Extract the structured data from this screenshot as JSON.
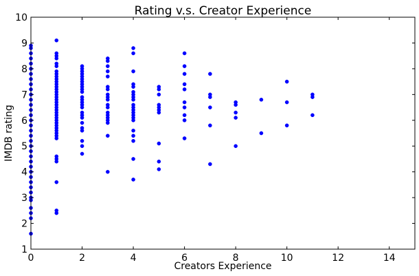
{
  "chart_data": {
    "type": "scatter",
    "title": "Rating v.s. Creator Experience",
    "xlabel": "Creators Experience",
    "ylabel": "IMDB rating",
    "xlim": [
      0,
      15
    ],
    "ylim": [
      1,
      10
    ],
    "xticks": [
      0,
      2,
      4,
      6,
      8,
      10,
      12,
      14
    ],
    "yticks": [
      1,
      2,
      3,
      4,
      5,
      6,
      7,
      8,
      9,
      10
    ],
    "grid": false,
    "marker_color": "#0000ff",
    "series": [
      {
        "points": [
          [
            0,
            1.6
          ],
          [
            0,
            2.2
          ],
          [
            0,
            2.4
          ],
          [
            0,
            2.6
          ],
          [
            0,
            2.9
          ],
          [
            0,
            3.0
          ],
          [
            0,
            3.2
          ],
          [
            0,
            3.4
          ],
          [
            0,
            3.6
          ],
          [
            0,
            3.8
          ],
          [
            0,
            4.0
          ],
          [
            0,
            4.2
          ],
          [
            0,
            4.4
          ],
          [
            0,
            4.6
          ],
          [
            0,
            4.8
          ],
          [
            0,
            5.0
          ],
          [
            0,
            5.2
          ],
          [
            0,
            5.4
          ],
          [
            0,
            5.6
          ],
          [
            0,
            5.8
          ],
          [
            0,
            6.0
          ],
          [
            0,
            6.2
          ],
          [
            0,
            6.4
          ],
          [
            0,
            6.6
          ],
          [
            0,
            6.8
          ],
          [
            0,
            7.0
          ],
          [
            0,
            7.2
          ],
          [
            0,
            7.4
          ],
          [
            0,
            7.6
          ],
          [
            0,
            7.8
          ],
          [
            0,
            8.0
          ],
          [
            0,
            8.2
          ],
          [
            0,
            8.4
          ],
          [
            0,
            8.6
          ],
          [
            0,
            8.8
          ],
          [
            0,
            8.9
          ],
          [
            1,
            2.4
          ],
          [
            1,
            2.5
          ],
          [
            1,
            3.6
          ],
          [
            1,
            4.4
          ],
          [
            1,
            4.5
          ],
          [
            1,
            4.6
          ],
          [
            1,
            5.3
          ],
          [
            1,
            5.4
          ],
          [
            1,
            5.5
          ],
          [
            1,
            5.6
          ],
          [
            1,
            5.7
          ],
          [
            1,
            5.8
          ],
          [
            1,
            5.9
          ],
          [
            1,
            6.0
          ],
          [
            1,
            6.1
          ],
          [
            1,
            6.2
          ],
          [
            1,
            6.3
          ],
          [
            1,
            6.4
          ],
          [
            1,
            6.5
          ],
          [
            1,
            6.6
          ],
          [
            1,
            6.7
          ],
          [
            1,
            6.8
          ],
          [
            1,
            6.9
          ],
          [
            1,
            7.0
          ],
          [
            1,
            7.1
          ],
          [
            1,
            7.2
          ],
          [
            1,
            7.3
          ],
          [
            1,
            7.4
          ],
          [
            1,
            7.5
          ],
          [
            1,
            7.6
          ],
          [
            1,
            7.7
          ],
          [
            1,
            7.8
          ],
          [
            1,
            7.9
          ],
          [
            1,
            8.1
          ],
          [
            1,
            8.2
          ],
          [
            1,
            8.4
          ],
          [
            1,
            8.5
          ],
          [
            1,
            8.6
          ],
          [
            1,
            9.1
          ],
          [
            2,
            4.7
          ],
          [
            2,
            5.0
          ],
          [
            2,
            5.2
          ],
          [
            2,
            5.6
          ],
          [
            2,
            5.7
          ],
          [
            2,
            5.9
          ],
          [
            2,
            6.1
          ],
          [
            2,
            6.2
          ],
          [
            2,
            6.3
          ],
          [
            2,
            6.5
          ],
          [
            2,
            6.6
          ],
          [
            2,
            6.7
          ],
          [
            2,
            6.8
          ],
          [
            2,
            6.9
          ],
          [
            2,
            7.1
          ],
          [
            2,
            7.2
          ],
          [
            2,
            7.3
          ],
          [
            2,
            7.4
          ],
          [
            2,
            7.5
          ],
          [
            2,
            7.6
          ],
          [
            2,
            7.7
          ],
          [
            2,
            7.8
          ],
          [
            2,
            7.9
          ],
          [
            2,
            8.0
          ],
          [
            2,
            8.1
          ],
          [
            3,
            4.0
          ],
          [
            3,
            5.4
          ],
          [
            3,
            5.9
          ],
          [
            3,
            6.0
          ],
          [
            3,
            6.1
          ],
          [
            3,
            6.2
          ],
          [
            3,
            6.3
          ],
          [
            3,
            6.5
          ],
          [
            3,
            6.6
          ],
          [
            3,
            6.8
          ],
          [
            3,
            6.9
          ],
          [
            3,
            7.0
          ],
          [
            3,
            7.2
          ],
          [
            3,
            7.3
          ],
          [
            3,
            7.7
          ],
          [
            3,
            7.9
          ],
          [
            3,
            8.1
          ],
          [
            3,
            8.3
          ],
          [
            3,
            8.4
          ],
          [
            4,
            3.7
          ],
          [
            4,
            4.5
          ],
          [
            4,
            5.2
          ],
          [
            4,
            5.4
          ],
          [
            4,
            5.6
          ],
          [
            4,
            6.0
          ],
          [
            4,
            6.1
          ],
          [
            4,
            6.2
          ],
          [
            4,
            6.3
          ],
          [
            4,
            6.4
          ],
          [
            4,
            6.5
          ],
          [
            4,
            6.6
          ],
          [
            4,
            6.8
          ],
          [
            4,
            6.9
          ],
          [
            4,
            7.0
          ],
          [
            4,
            7.1
          ],
          [
            4,
            7.3
          ],
          [
            4,
            7.4
          ],
          [
            4,
            7.9
          ],
          [
            4,
            8.6
          ],
          [
            4,
            8.8
          ],
          [
            5,
            4.1
          ],
          [
            5,
            4.4
          ],
          [
            5,
            5.1
          ],
          [
            5,
            6.3
          ],
          [
            5,
            6.4
          ],
          [
            5,
            6.5
          ],
          [
            5,
            6.6
          ],
          [
            5,
            7.0
          ],
          [
            5,
            7.2
          ],
          [
            5,
            7.3
          ],
          [
            6,
            5.3
          ],
          [
            6,
            6.0
          ],
          [
            6,
            6.2
          ],
          [
            6,
            6.5
          ],
          [
            6,
            6.7
          ],
          [
            6,
            7.2
          ],
          [
            6,
            7.4
          ],
          [
            6,
            7.8
          ],
          [
            6,
            8.1
          ],
          [
            6,
            8.6
          ],
          [
            7,
            4.3
          ],
          [
            7,
            5.8
          ],
          [
            7,
            6.5
          ],
          [
            7,
            6.9
          ],
          [
            7,
            7.0
          ],
          [
            7,
            7.8
          ],
          [
            8,
            5.0
          ],
          [
            8,
            6.1
          ],
          [
            8,
            6.3
          ],
          [
            8,
            6.6
          ],
          [
            8,
            6.7
          ],
          [
            9,
            5.5
          ],
          [
            9,
            6.8
          ],
          [
            10,
            5.8
          ],
          [
            10,
            6.7
          ],
          [
            10,
            7.5
          ],
          [
            11,
            6.2
          ],
          [
            11,
            6.9
          ],
          [
            11,
            7.0
          ]
        ]
      }
    ]
  }
}
